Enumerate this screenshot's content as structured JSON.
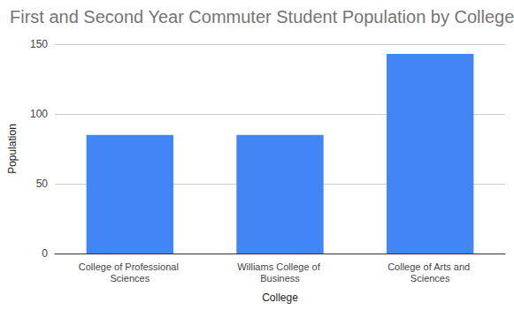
{
  "chart_data": {
    "type": "bar",
    "title": "First and Second Year Commuter Student Population by College",
    "x_label": "College",
    "y_label": "Population",
    "categories": [
      "College of Professional Sciences",
      "Williams College of Business",
      "College of Arts and Sciences"
    ],
    "values": [
      85,
      85,
      143
    ],
    "color": "#4285f4",
    "ylim": [
      0,
      150
    ],
    "yticks": [
      0,
      50,
      100,
      150
    ],
    "grid": true
  }
}
